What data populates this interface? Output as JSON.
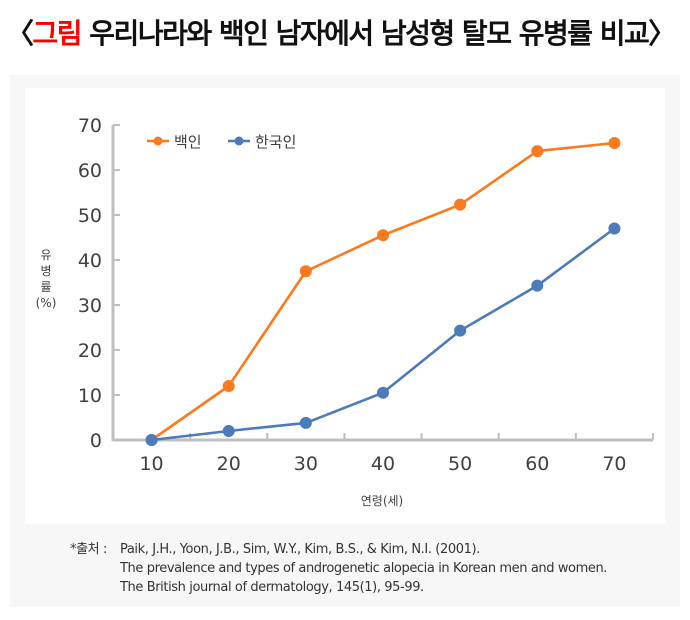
{
  "title": {
    "open_bracket": "〈",
    "highlight": "그림",
    "text": " 우리나라와 백인 남자에서 남성형 탈모 유병률  비교",
    "close_bracket": "〉"
  },
  "chart_data": {
    "type": "line",
    "title": "우리나라와 백인 남자에서 남성형 탈모 유병률 비교",
    "xlabel": "연령(세)",
    "ylabel": "유병률 (%)",
    "ylabel_lines": [
      "유",
      "병",
      "률",
      "(%)"
    ],
    "categories": [
      10,
      20,
      30,
      40,
      50,
      60,
      70
    ],
    "x_tick_labels": [
      "10",
      "20",
      "30",
      "40",
      "50",
      "60",
      "70"
    ],
    "y_tick_labels": [
      "0",
      "10",
      "20",
      "30",
      "40",
      "50",
      "60",
      "70"
    ],
    "ylim": [
      0,
      70
    ],
    "grid": false,
    "legend_position": "top-left",
    "series": [
      {
        "name": "백인",
        "color": "#fb7a1e",
        "values": [
          0,
          12,
          37.5,
          45.5,
          52.3,
          64.2,
          66
        ]
      },
      {
        "name": "한국인",
        "color": "#4b7bb8",
        "values": [
          0,
          2,
          3.8,
          10.5,
          24.3,
          34.3,
          47
        ]
      }
    ]
  },
  "source": {
    "label": "*출처 :",
    "lines": [
      "Paik, J.H., Yoon, J.B., Sim, W.Y., Kim, B.S., & Kim, N.I. (2001).",
      "The prevalence and types of androgenetic alopecia in Korean men and women.",
      "The British journal of dermatology, 145(1), 95-99."
    ]
  }
}
